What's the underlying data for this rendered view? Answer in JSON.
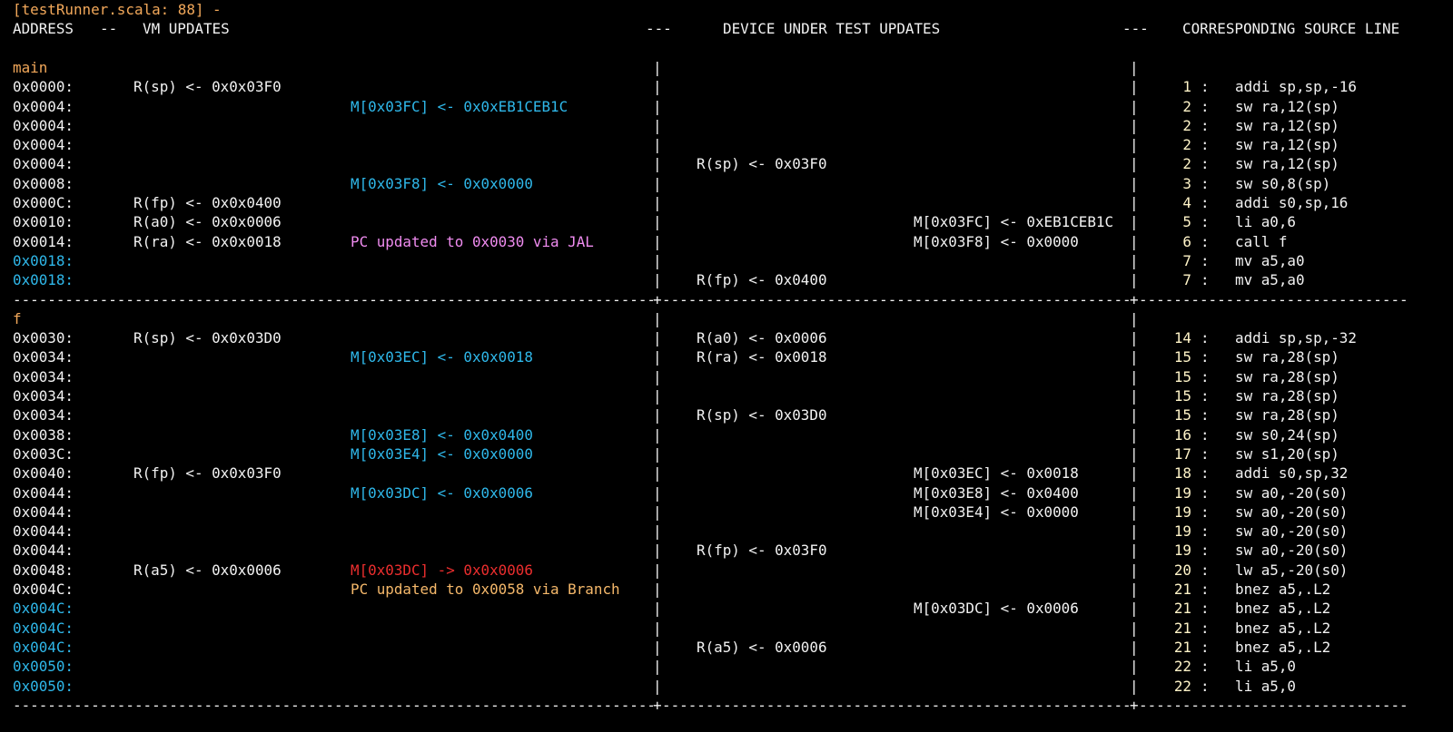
{
  "title": "[testRunner.scala: 88] -",
  "header": {
    "address": "ADDRESS",
    "sep1": "--",
    "vm": "VM UPDATES",
    "sep2": "---",
    "dut": "DEVICE UNDER TEST UPDATES",
    "sep3": "---",
    "source": "CORRESPONDING SOURCE LINE"
  },
  "colors": {
    "background": "#000000",
    "text": "#f2f2f2",
    "label": "#f2a85a",
    "vm_memory_write": "#2fb8ea",
    "pc_jal": "#f08cf0",
    "memory_read": "#ec2e2e",
    "pc_branch": "#f5b86a",
    "address_highlight": "#2fb8ea"
  },
  "sections": [
    {
      "label": "main",
      "rows": [
        {
          "addr": "0x0000:",
          "vm_reg": "R(sp) <- 0x0x03F0",
          "line": "1",
          "src": "addi sp,sp,-16"
        },
        {
          "addr": "0x0004:",
          "vm_mem": "M[0x03FC] <- 0x0xEB1CEB1C",
          "vm_mem_style": "cyan",
          "line": "2",
          "src": "sw ra,12(sp)"
        },
        {
          "addr": "0x0004:",
          "line": "2",
          "src": "sw ra,12(sp)"
        },
        {
          "addr": "0x0004:",
          "line": "2",
          "src": "sw ra,12(sp)"
        },
        {
          "addr": "0x0004:",
          "dut_reg": "R(sp) <- 0x03F0",
          "line": "2",
          "src": "sw ra,12(sp)"
        },
        {
          "addr": "0x0008:",
          "vm_mem": "M[0x03F8] <- 0x0x0000",
          "vm_mem_style": "cyan",
          "line": "3",
          "src": "sw s0,8(sp)"
        },
        {
          "addr": "0x000C:",
          "vm_reg": "R(fp) <- 0x0x0400",
          "line": "4",
          "src": "addi s0,sp,16"
        },
        {
          "addr": "0x0010:",
          "vm_reg": "R(a0) <- 0x0x0006",
          "dut_mem": "M[0x03FC] <- 0xEB1CEB1C",
          "line": "5",
          "src": "li a0,6"
        },
        {
          "addr": "0x0014:",
          "vm_reg": "R(ra) <- 0x0x0018",
          "vm_mem": "PC updated to 0x0030 via JAL",
          "vm_mem_style": "magenta",
          "dut_mem": "M[0x03F8] <- 0x0000",
          "line": "6",
          "src": "call f"
        },
        {
          "addr": "0x0018:",
          "addr_style": "cyan",
          "line": "7",
          "src": "mv a5,a0"
        },
        {
          "addr": "0x0018:",
          "addr_style": "cyan",
          "dut_reg": "R(fp) <- 0x0400",
          "line": "7",
          "src": "mv a5,a0"
        }
      ]
    },
    {
      "label": "f",
      "rows": [
        {
          "addr": "0x0030:",
          "vm_reg": "R(sp) <- 0x0x03D0",
          "dut_reg": "R(a0) <- 0x0006",
          "line": "14",
          "src": "addi sp,sp,-32"
        },
        {
          "addr": "0x0034:",
          "vm_mem": "M[0x03EC] <- 0x0x0018",
          "vm_mem_style": "cyan",
          "dut_reg": "R(ra) <- 0x0018",
          "line": "15",
          "src": "sw ra,28(sp)"
        },
        {
          "addr": "0x0034:",
          "line": "15",
          "src": "sw ra,28(sp)"
        },
        {
          "addr": "0x0034:",
          "line": "15",
          "src": "sw ra,28(sp)"
        },
        {
          "addr": "0x0034:",
          "dut_reg": "R(sp) <- 0x03D0",
          "line": "15",
          "src": "sw ra,28(sp)"
        },
        {
          "addr": "0x0038:",
          "vm_mem": "M[0x03E8] <- 0x0x0400",
          "vm_mem_style": "cyan",
          "line": "16",
          "src": "sw s0,24(sp)"
        },
        {
          "addr": "0x003C:",
          "vm_mem": "M[0x03E4] <- 0x0x0000",
          "vm_mem_style": "cyan",
          "line": "17",
          "src": "sw s1,20(sp)"
        },
        {
          "addr": "0x0040:",
          "vm_reg": "R(fp) <- 0x0x03F0",
          "dut_mem": "M[0x03EC] <- 0x0018",
          "line": "18",
          "src": "addi s0,sp,32"
        },
        {
          "addr": "0x0044:",
          "vm_mem": "M[0x03DC] <- 0x0x0006",
          "vm_mem_style": "cyan",
          "dut_mem": "M[0x03E8] <- 0x0400",
          "line": "19",
          "src": "sw a0,-20(s0)"
        },
        {
          "addr": "0x0044:",
          "dut_mem": "M[0x03E4] <- 0x0000",
          "line": "19",
          "src": "sw a0,-20(s0)"
        },
        {
          "addr": "0x0044:",
          "line": "19",
          "src": "sw a0,-20(s0)"
        },
        {
          "addr": "0x0044:",
          "dut_reg": "R(fp) <- 0x03F0",
          "line": "19",
          "src": "sw a0,-20(s0)"
        },
        {
          "addr": "0x0048:",
          "vm_reg": "R(a5) <- 0x0x0006",
          "vm_mem": "M[0x03DC] -> 0x0x0006",
          "vm_mem_style": "red",
          "line": "20",
          "src": "lw a5,-20(s0)"
        },
        {
          "addr": "0x004C:",
          "vm_mem": "PC updated to 0x0058 via Branch",
          "vm_mem_style": "branch",
          "line": "21",
          "src": "bnez a5,.L2"
        },
        {
          "addr": "0x004C:",
          "addr_style": "cyan",
          "dut_mem": "M[0x03DC] <- 0x0006",
          "line": "21",
          "src": "bnez a5,.L2"
        },
        {
          "addr": "0x004C:",
          "addr_style": "cyan",
          "line": "21",
          "src": "bnez a5,.L2"
        },
        {
          "addr": "0x004C:",
          "addr_style": "cyan",
          "dut_reg": "R(a5) <- 0x0006",
          "line": "21",
          "src": "bnez a5,.L2"
        },
        {
          "addr": "0x0050:",
          "addr_style": "cyan",
          "line": "22",
          "src": "li a5,0"
        },
        {
          "addr": "0x0050:",
          "addr_style": "cyan",
          "line": "22",
          "src": "li a5,0"
        }
      ]
    }
  ]
}
